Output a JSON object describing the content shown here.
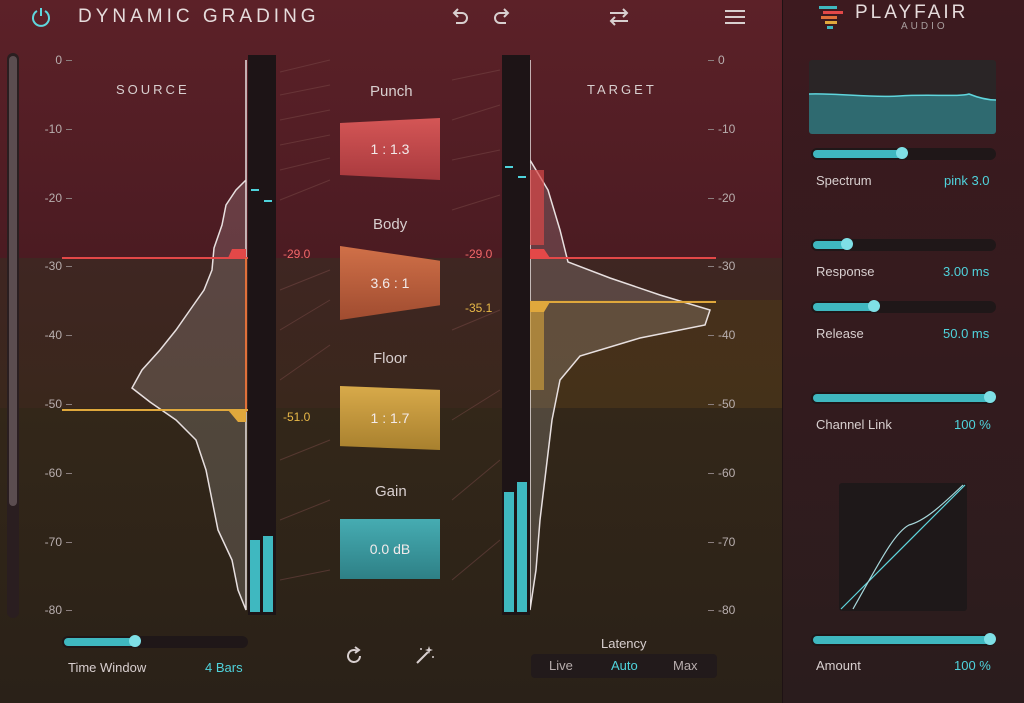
{
  "app": {
    "title": "DYNAMIC GRADING",
    "brand": "PLAYFAIR",
    "brand_sub": "AUDIO"
  },
  "colors": {
    "accent": "#3fb8c0",
    "punch": "#c84848",
    "body": "#c0623a",
    "floor": "#c89a3c",
    "gain": "#3a9aa0"
  },
  "toolbar": {
    "power_icon": "power-icon",
    "undo_icon": "undo-icon",
    "redo_icon": "redo-icon",
    "swap_icon": "swap-icon",
    "menu_icon": "menu-icon"
  },
  "source": {
    "label": "SOURCE",
    "scale": [
      "0",
      "-10",
      "-20",
      "-30",
      "-40",
      "-50",
      "-60",
      "-70",
      "-80"
    ],
    "punch_threshold": "-29.0",
    "floor_threshold": "-51.0"
  },
  "target": {
    "label": "TARGET",
    "scale": [
      "0",
      "-10",
      "-20",
      "-30",
      "-40",
      "-50",
      "-60",
      "-70",
      "-80"
    ],
    "punch_threshold": "-29.0",
    "floor_threshold": "-35.1"
  },
  "controls": {
    "punch": {
      "label": "Punch",
      "value": "1 : 1.3"
    },
    "body": {
      "label": "Body",
      "value": "3.6 : 1"
    },
    "floor": {
      "label": "Floor",
      "value": "1 : 1.7"
    },
    "gain": {
      "label": "Gain",
      "value": "0.0 dB"
    }
  },
  "time_window": {
    "label": "Time Window",
    "value": "4 Bars",
    "level": 0.4
  },
  "bottom_icons": {
    "reset": "reset-icon",
    "magic": "magic-wand-icon"
  },
  "latency": {
    "label": "Latency",
    "options": [
      "Live",
      "Auto",
      "Max"
    ],
    "selected": "Auto"
  },
  "params": {
    "spectrum": {
      "label": "Spectrum",
      "value": "pink 3.0",
      "level": 0.5
    },
    "response": {
      "label": "Response",
      "value": "3.00 ms",
      "level": 0.2
    },
    "release": {
      "label": "Release",
      "value": "50.0 ms",
      "level": 0.35
    },
    "channel_link": {
      "label": "Channel Link",
      "value": "100 %",
      "level": 1.0
    },
    "amount": {
      "label": "Amount",
      "value": "100 %",
      "level": 1.0
    }
  }
}
